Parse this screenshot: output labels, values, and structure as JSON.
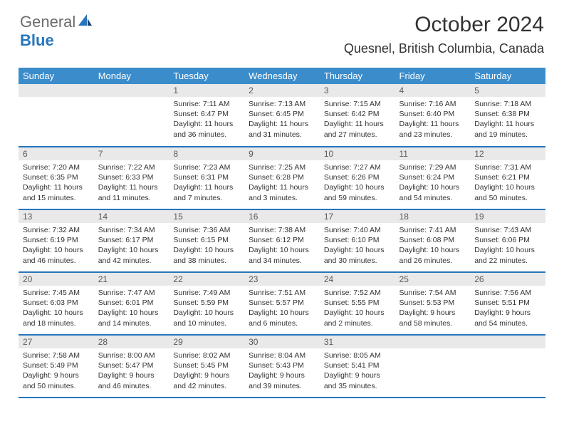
{
  "logo": {
    "text1": "General",
    "text2": "Blue"
  },
  "title": "October 2024",
  "location": "Quesnel, British Columbia, Canada",
  "colors": {
    "header_bg": "#3b8ccb",
    "row_border": "#2676bd",
    "daynum_bg": "#e9e9e9",
    "logo_blue": "#2676bd",
    "logo_gray": "#6b6b6b"
  },
  "day_labels": [
    "Sunday",
    "Monday",
    "Tuesday",
    "Wednesday",
    "Thursday",
    "Friday",
    "Saturday"
  ],
  "weeks": [
    [
      {
        "n": "",
        "sr": "",
        "ss": "",
        "dl": ""
      },
      {
        "n": "",
        "sr": "",
        "ss": "",
        "dl": ""
      },
      {
        "n": "1",
        "sr": "7:11 AM",
        "ss": "6:47 PM",
        "dl": "11 hours and 36 minutes."
      },
      {
        "n": "2",
        "sr": "7:13 AM",
        "ss": "6:45 PM",
        "dl": "11 hours and 31 minutes."
      },
      {
        "n": "3",
        "sr": "7:15 AM",
        "ss": "6:42 PM",
        "dl": "11 hours and 27 minutes."
      },
      {
        "n": "4",
        "sr": "7:16 AM",
        "ss": "6:40 PM",
        "dl": "11 hours and 23 minutes."
      },
      {
        "n": "5",
        "sr": "7:18 AM",
        "ss": "6:38 PM",
        "dl": "11 hours and 19 minutes."
      }
    ],
    [
      {
        "n": "6",
        "sr": "7:20 AM",
        "ss": "6:35 PM",
        "dl": "11 hours and 15 minutes."
      },
      {
        "n": "7",
        "sr": "7:22 AM",
        "ss": "6:33 PM",
        "dl": "11 hours and 11 minutes."
      },
      {
        "n": "8",
        "sr": "7:23 AM",
        "ss": "6:31 PM",
        "dl": "11 hours and 7 minutes."
      },
      {
        "n": "9",
        "sr": "7:25 AM",
        "ss": "6:28 PM",
        "dl": "11 hours and 3 minutes."
      },
      {
        "n": "10",
        "sr": "7:27 AM",
        "ss": "6:26 PM",
        "dl": "10 hours and 59 minutes."
      },
      {
        "n": "11",
        "sr": "7:29 AM",
        "ss": "6:24 PM",
        "dl": "10 hours and 54 minutes."
      },
      {
        "n": "12",
        "sr": "7:31 AM",
        "ss": "6:21 PM",
        "dl": "10 hours and 50 minutes."
      }
    ],
    [
      {
        "n": "13",
        "sr": "7:32 AM",
        "ss": "6:19 PM",
        "dl": "10 hours and 46 minutes."
      },
      {
        "n": "14",
        "sr": "7:34 AM",
        "ss": "6:17 PM",
        "dl": "10 hours and 42 minutes."
      },
      {
        "n": "15",
        "sr": "7:36 AM",
        "ss": "6:15 PM",
        "dl": "10 hours and 38 minutes."
      },
      {
        "n": "16",
        "sr": "7:38 AM",
        "ss": "6:12 PM",
        "dl": "10 hours and 34 minutes."
      },
      {
        "n": "17",
        "sr": "7:40 AM",
        "ss": "6:10 PM",
        "dl": "10 hours and 30 minutes."
      },
      {
        "n": "18",
        "sr": "7:41 AM",
        "ss": "6:08 PM",
        "dl": "10 hours and 26 minutes."
      },
      {
        "n": "19",
        "sr": "7:43 AM",
        "ss": "6:06 PM",
        "dl": "10 hours and 22 minutes."
      }
    ],
    [
      {
        "n": "20",
        "sr": "7:45 AM",
        "ss": "6:03 PM",
        "dl": "10 hours and 18 minutes."
      },
      {
        "n": "21",
        "sr": "7:47 AM",
        "ss": "6:01 PM",
        "dl": "10 hours and 14 minutes."
      },
      {
        "n": "22",
        "sr": "7:49 AM",
        "ss": "5:59 PM",
        "dl": "10 hours and 10 minutes."
      },
      {
        "n": "23",
        "sr": "7:51 AM",
        "ss": "5:57 PM",
        "dl": "10 hours and 6 minutes."
      },
      {
        "n": "24",
        "sr": "7:52 AM",
        "ss": "5:55 PM",
        "dl": "10 hours and 2 minutes."
      },
      {
        "n": "25",
        "sr": "7:54 AM",
        "ss": "5:53 PM",
        "dl": "9 hours and 58 minutes."
      },
      {
        "n": "26",
        "sr": "7:56 AM",
        "ss": "5:51 PM",
        "dl": "9 hours and 54 minutes."
      }
    ],
    [
      {
        "n": "27",
        "sr": "7:58 AM",
        "ss": "5:49 PM",
        "dl": "9 hours and 50 minutes."
      },
      {
        "n": "28",
        "sr": "8:00 AM",
        "ss": "5:47 PM",
        "dl": "9 hours and 46 minutes."
      },
      {
        "n": "29",
        "sr": "8:02 AM",
        "ss": "5:45 PM",
        "dl": "9 hours and 42 minutes."
      },
      {
        "n": "30",
        "sr": "8:04 AM",
        "ss": "5:43 PM",
        "dl": "9 hours and 39 minutes."
      },
      {
        "n": "31",
        "sr": "8:05 AM",
        "ss": "5:41 PM",
        "dl": "9 hours and 35 minutes."
      },
      {
        "n": "",
        "sr": "",
        "ss": "",
        "dl": ""
      },
      {
        "n": "",
        "sr": "",
        "ss": "",
        "dl": ""
      }
    ]
  ],
  "labels": {
    "sunrise": "Sunrise:",
    "sunset": "Sunset:",
    "daylight": "Daylight:"
  }
}
